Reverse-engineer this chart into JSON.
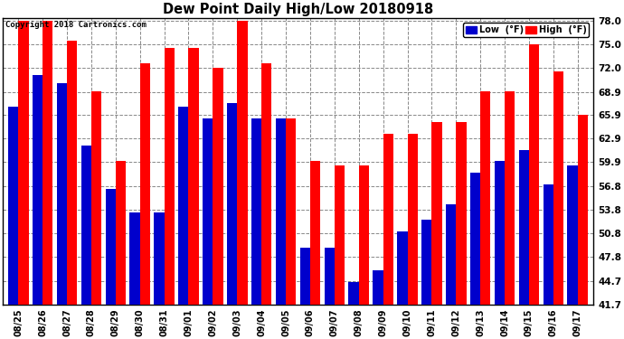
{
  "title": "Dew Point Daily High/Low 20180918",
  "copyright": "Copyright 2018 Cartronics.com",
  "dates": [
    "08/25",
    "08/26",
    "08/27",
    "08/28",
    "08/29",
    "08/30",
    "08/31",
    "09/01",
    "09/02",
    "09/03",
    "09/04",
    "09/05",
    "09/06",
    "09/07",
    "09/08",
    "09/09",
    "09/10",
    "09/11",
    "09/12",
    "09/13",
    "09/14",
    "09/15",
    "09/16",
    "09/17"
  ],
  "high_values": [
    78.0,
    78.0,
    75.5,
    69.0,
    60.0,
    72.5,
    74.5,
    74.5,
    72.0,
    78.0,
    72.5,
    65.5,
    60.0,
    59.5,
    59.5,
    63.5,
    63.5,
    65.0,
    65.0,
    69.0,
    69.0,
    75.0,
    71.5,
    66.0
  ],
  "low_values": [
    67.0,
    71.0,
    70.0,
    62.0,
    56.5,
    53.5,
    53.5,
    67.0,
    65.5,
    67.5,
    65.5,
    65.5,
    49.0,
    49.0,
    44.5,
    46.0,
    51.0,
    52.5,
    54.5,
    58.5,
    60.0,
    61.5,
    57.0,
    59.5
  ],
  "high_color": "#ff0000",
  "low_color": "#0000cc",
  "background_color": "#ffffff",
  "grid_color": "#888888",
  "ylim_min": 41.7,
  "ylim_max": 78.0,
  "yticks": [
    41.7,
    44.7,
    47.8,
    50.8,
    53.8,
    56.8,
    59.9,
    62.9,
    65.9,
    68.9,
    72.0,
    75.0,
    78.0
  ],
  "bar_width": 0.42,
  "legend_low_label": "Low  (°F)",
  "legend_high_label": "High  (°F)"
}
